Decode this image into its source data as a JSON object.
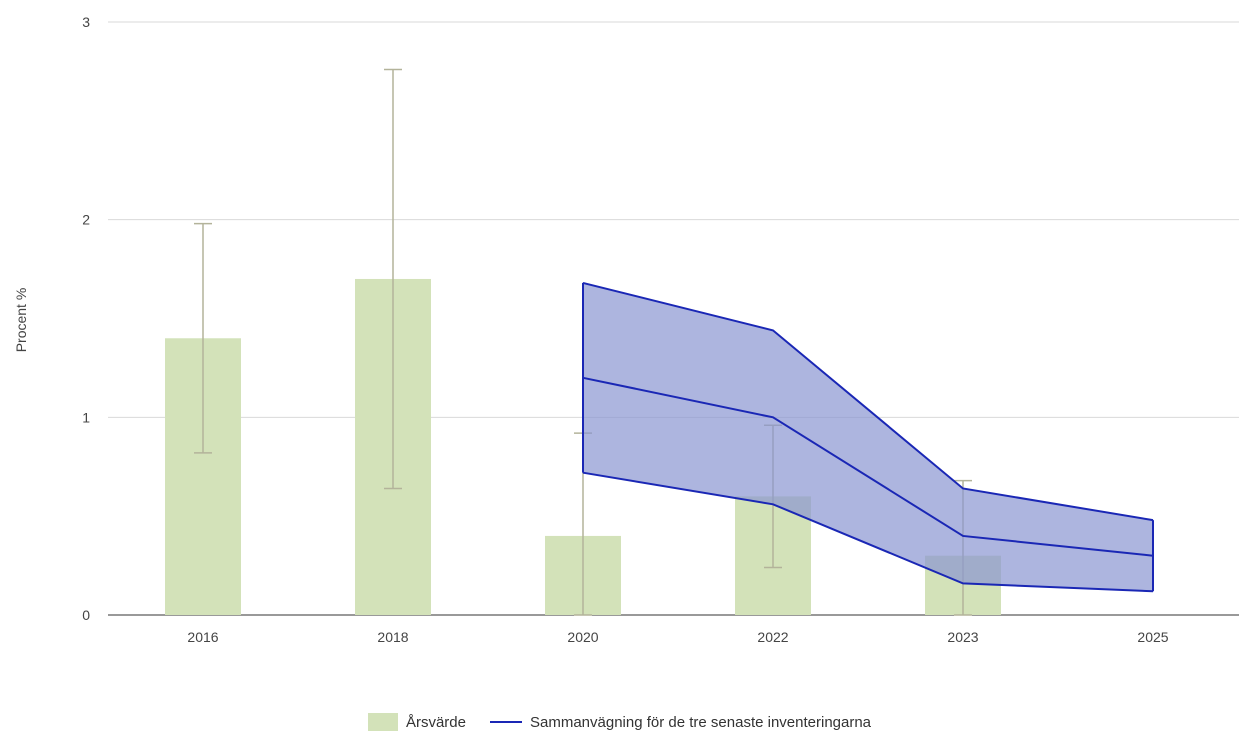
{
  "chart_data": {
    "type": "bar",
    "categories": [
      "2016",
      "2018",
      "2020",
      "2022",
      "2023",
      "2025"
    ],
    "ylabel": "Procent %",
    "ylim": [
      0,
      3
    ],
    "yticks": [
      "0",
      "1",
      "2",
      "3"
    ],
    "grid": true,
    "legend_position": "bottom-center",
    "bar_series": {
      "name": "Årsvärde",
      "color": "#d3e2b9",
      "values": [
        1.4,
        1.7,
        0.4,
        0.6,
        0.3,
        null
      ],
      "error_low": [
        0.82,
        0.64,
        0.0,
        0.24,
        0.0,
        null
      ],
      "error_high": [
        1.98,
        2.76,
        0.92,
        0.96,
        0.68,
        null
      ]
    },
    "line_series": {
      "name": "Sammanvägning för de tre senaste inventeringarna",
      "color": "#1a27b5",
      "band_color": "#8a96d2",
      "categories": [
        "2020",
        "2022",
        "2023",
        "2025"
      ],
      "values": [
        1.2,
        1.0,
        0.4,
        0.3
      ],
      "lower": [
        0.72,
        0.56,
        0.16,
        0.12
      ],
      "upper": [
        1.68,
        1.44,
        0.64,
        0.48
      ]
    }
  }
}
